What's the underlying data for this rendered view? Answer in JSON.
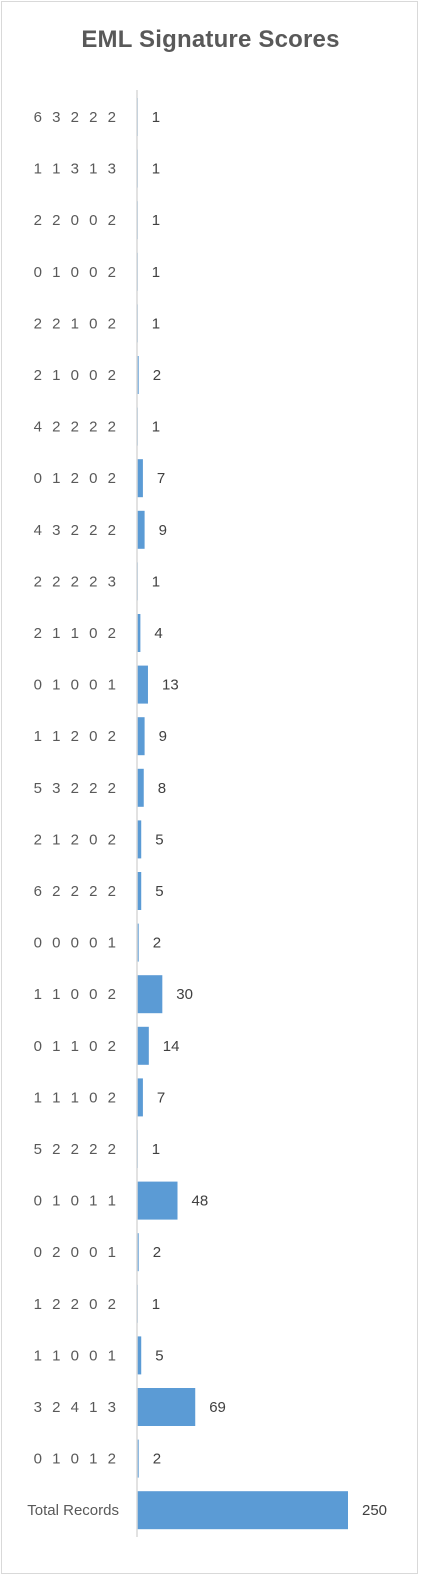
{
  "chart_data": {
    "type": "bar",
    "orientation": "horizontal",
    "title": "EML Signature Scores",
    "xlabel": "",
    "ylabel": "",
    "categories": [
      "6 3 2 2 2",
      "1 1 3 1 3",
      "2 2 0 0 2",
      "0 1 0 0 2",
      "2 2 1 0 2",
      "2 1 0 0 2",
      "4 2 2 2 2",
      "0 1 2 0 2",
      "4 3 2 2 2",
      "2 2 2 2 3",
      "2 1 1 0 2",
      "0 1 0 0 1",
      "1 1 2 0 2",
      "5 3 2 2 2",
      "2 1 2 0 2",
      "6 2 2 2 2",
      "0 0 0 0 1",
      "1 1 0 0 2",
      "0 1 1 0 2",
      "1 1 1 0 2",
      "5 2 2 2 2",
      "0 1 0 1 1",
      "0 2 0 0 1",
      "1 2 2 0 2",
      "1 1 0 0 1",
      "3 2 4 1 3",
      "0 1 0 1 2",
      "Total Records"
    ],
    "values": [
      1,
      1,
      1,
      1,
      1,
      2,
      1,
      7,
      9,
      1,
      4,
      13,
      9,
      8,
      5,
      5,
      2,
      30,
      14,
      7,
      1,
      48,
      2,
      1,
      5,
      69,
      2,
      250
    ],
    "xlim": [
      0,
      250
    ],
    "grid": false,
    "legend": "none",
    "data_labels": true,
    "colors": {
      "bar": "#5b9bd5",
      "axis": "#d9d9d9",
      "text": "#595959"
    }
  }
}
